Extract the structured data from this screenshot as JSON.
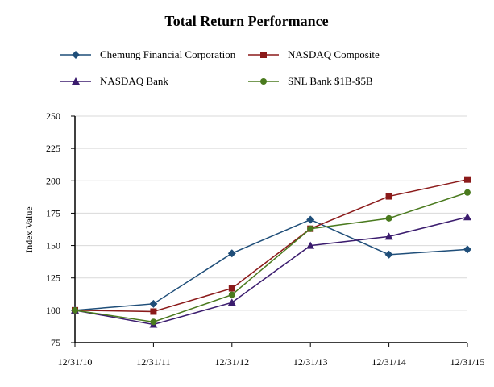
{
  "chart_data": {
    "type": "line",
    "title": "Total Return Performance",
    "xlabel": "",
    "ylabel": "Index Value",
    "ylim": [
      75,
      250
    ],
    "yticks": [
      75,
      100,
      125,
      150,
      175,
      200,
      225,
      250
    ],
    "categories": [
      "12/31/10",
      "12/31/11",
      "12/31/12",
      "12/31/13",
      "12/31/14",
      "12/31/15"
    ],
    "legend_position": "top",
    "grid": true,
    "series": [
      {
        "name": "Chemung Financial Corporation",
        "color": "#1f4e79",
        "marker": "diamond",
        "values": [
          100,
          105,
          144,
          170,
          143,
          147
        ]
      },
      {
        "name": "NASDAQ Composite",
        "color": "#8b1a1a",
        "marker": "square",
        "values": [
          100,
          99,
          117,
          163,
          188,
          201
        ]
      },
      {
        "name": "NASDAQ Bank",
        "color": "#3b1c6e",
        "marker": "triangle",
        "values": [
          100,
          89,
          106,
          150,
          157,
          172
        ]
      },
      {
        "name": "SNL Bank $1B-$5B",
        "color": "#4a7a1e",
        "marker": "circle",
        "values": [
          100,
          91,
          112,
          163,
          171,
          191
        ]
      }
    ]
  }
}
